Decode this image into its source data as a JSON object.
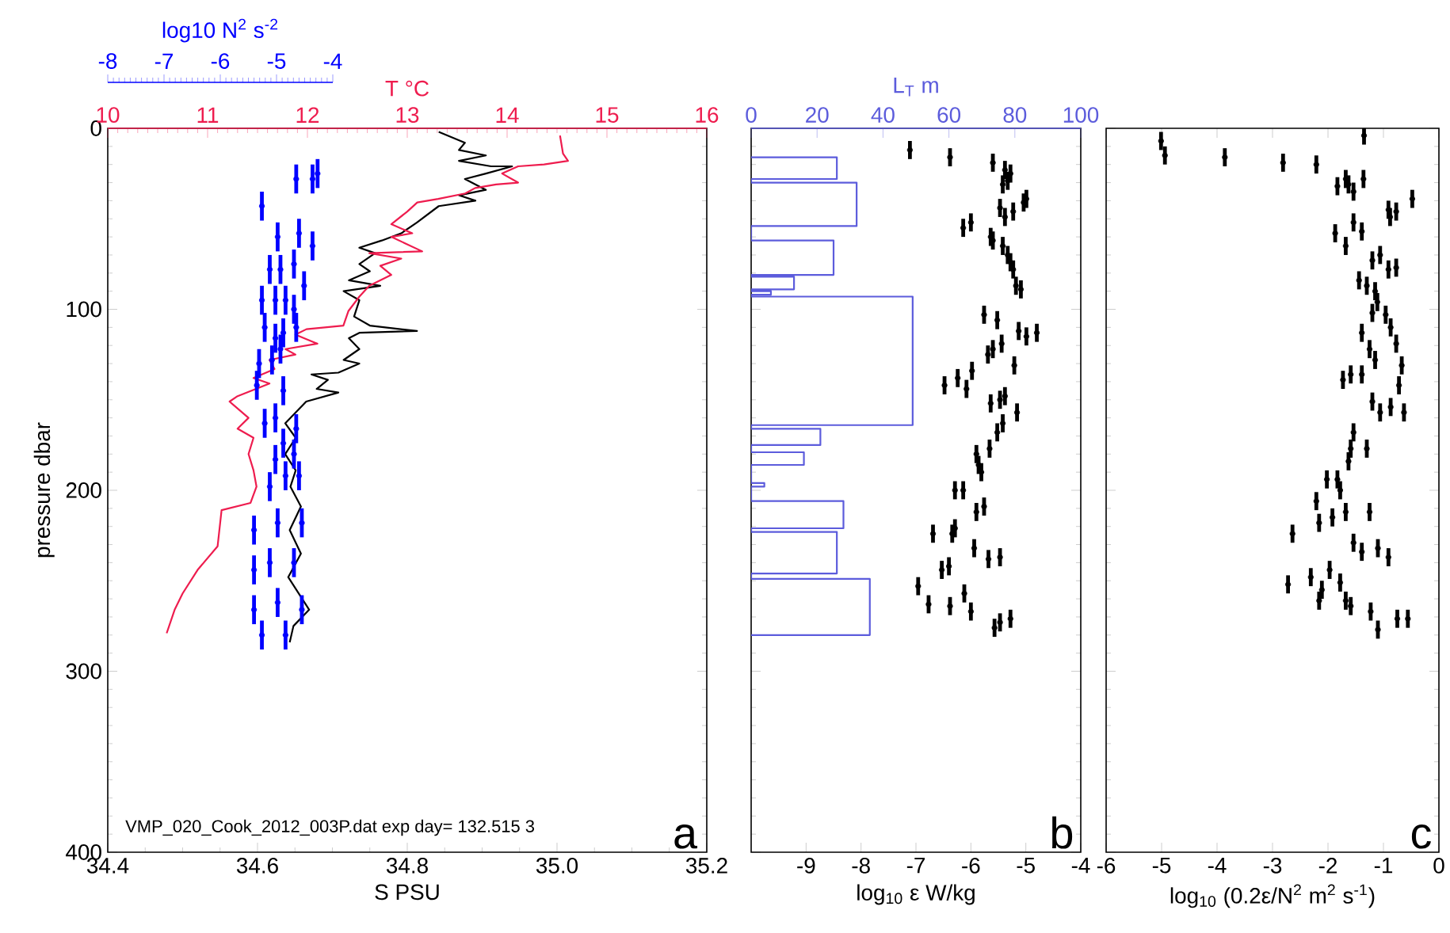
{
  "chart_data": [
    {
      "type": "line",
      "xlabel": "S PSU",
      "ylabel": "pressure dbar",
      "x2label": "T °C",
      "xlim": [
        34.4,
        35.2
      ],
      "xticks": [
        34.4,
        34.6,
        34.8,
        {
          "value": 35,
          "label": "35.0"
        },
        35.2
      ],
      "x2lim": [
        10,
        16
      ],
      "x2ticks": [
        10,
        11,
        12,
        13,
        14,
        15,
        16
      ],
      "ylim": [
        400,
        0
      ],
      "yticks": [
        0,
        100,
        200,
        300,
        400
      ],
      "annotations": [
        "VMP_020_Cook_2012_003P.dat exp day= 132.515 3",
        "a"
      ],
      "series": [
        {
          "color": "#000000",
          "x": [
            34.842,
            34.877,
            34.869,
            34.905,
            34.869,
            34.912,
            34.94,
            34.905,
            34.877,
            34.905,
            34.869,
            34.891,
            34.842,
            34.813,
            34.792,
            34.766,
            34.736,
            34.757,
            34.736,
            34.75,
            34.722,
            34.764,
            34.715,
            34.736,
            34.729,
            34.75,
            34.813,
            34.736,
            34.722,
            34.736,
            34.715,
            34.736,
            34.708,
            34.672,
            34.694,
            34.679,
            34.708,
            34.665,
            34.651,
            34.637,
            34.651,
            34.637,
            34.651,
            34.644,
            34.658,
            34.643,
            34.658,
            34.641,
            34.669,
            34.648,
            34.643
          ],
          "values": [
            2,
            8,
            12,
            15,
            18,
            21,
            21,
            25,
            28,
            34,
            37,
            40,
            43,
            52,
            58,
            62,
            66,
            69,
            75,
            79,
            84,
            87,
            90,
            95,
            104,
            109,
            112,
            113,
            116,
            122,
            128,
            130,
            135,
            136,
            139,
            144,
            146,
            151,
            157,
            163,
            171,
            180,
            189,
            198,
            209,
            222,
            235,
            248,
            266,
            275,
            284
          ]
        },
        {
          "color": "#ee1c4e",
          "axis": "x2",
          "x": [
            14.53,
            14.56,
            14.61,
            14.37,
            14.11,
            13.95,
            14.11,
            13.89,
            13.68,
            13.58,
            13.31,
            13.1,
            13.0,
            12.84,
            13.05,
            12.84,
            13.15,
            12.62,
            12.94,
            12.73,
            12.84,
            12.62,
            12.52,
            12.41,
            12.36,
            11.99,
            11.88,
            12.1,
            11.78,
            11.88,
            11.62,
            11.67,
            11.46,
            11.62,
            11.3,
            11.22,
            11.41,
            11.3,
            11.46,
            11.41,
            11.46,
            11.49,
            11.43,
            11.14,
            11.1,
            10.9,
            10.75,
            10.67,
            10.59
          ],
          "values": [
            4,
            14,
            18,
            20,
            21,
            25,
            30,
            31,
            33,
            36,
            39,
            41,
            46,
            53,
            58,
            60,
            68,
            69,
            72,
            76,
            81,
            87,
            93,
            101,
            109,
            111,
            114,
            119,
            122,
            125,
            128,
            133,
            138,
            141,
            148,
            151,
            160,
            166,
            171,
            180,
            189,
            198,
            207,
            211,
            231,
            244,
            257,
            266,
            279
          ]
        }
      ]
    },
    {
      "type": "scatter",
      "xlabel": "log10 N$^{2}$ s$^{-2}$",
      "xlim": [
        -8,
        -4
      ],
      "xticks": [
        -8,
        -7,
        -6,
        -5,
        -4
      ],
      "ylim": [
        400,
        0
      ],
      "tick_labels": "x",
      "marker": "circle",
      "series": [
        {
          "color": "#0000ff",
          "x": [
            -4.27,
            -4.65,
            -4.36,
            -5.26,
            -4.6,
            -4.98,
            -4.36,
            -4.69,
            -5.12,
            -4.93,
            -4.51,
            -5.26,
            -5.02,
            -4.84,
            -4.69,
            -4.65,
            -5.21,
            -4.88,
            -5.02,
            -4.93,
            -5.08,
            -5.31,
            -5.35,
            -4.88,
            -5.02,
            -5.21,
            -4.65,
            -4.88,
            -4.69,
            -5.02,
            -4.84,
            -4.6,
            -5.12,
            -4.98,
            -5.4,
            -4.55,
            -5.12,
            -4.69,
            -5.4,
            -4.98,
            -5.4,
            -4.55,
            -5.26,
            -4.84
          ],
          "values": [
            25,
            28,
            28,
            43,
            58,
            60,
            65,
            75,
            78,
            78,
            87,
            95,
            95,
            95,
            100,
            110,
            110,
            113,
            116,
            122,
            128,
            130,
            142,
            145,
            160,
            163,
            166,
            174,
            180,
            183,
            192,
            192,
            198,
            218,
            222,
            218,
            240,
            240,
            244,
            262,
            266,
            266,
            280,
            280
          ],
          "errors": [
            8,
            8,
            8,
            8,
            8,
            8,
            8,
            8,
            8,
            8,
            8,
            8,
            8,
            8,
            8,
            8,
            8,
            8,
            8,
            8,
            8,
            8,
            8,
            8,
            8,
            8,
            8,
            8,
            8,
            8,
            8,
            8,
            8,
            8,
            8,
            8,
            8,
            8,
            8,
            8,
            8,
            8,
            8,
            8
          ]
        }
      ]
    },
    {
      "type": "scatter",
      "xlabel": "log$_{10}$ ε W/kg",
      "x2label": "L$_{T}$ m",
      "xlim": [
        -10,
        -4
      ],
      "xticks": [
        -9,
        -8,
        -7,
        -6,
        -5,
        -4
      ],
      "x2lim": [
        0,
        100
      ],
      "x2ticks": [
        0,
        20,
        40,
        60,
        80,
        100
      ],
      "ylim": [
        400,
        0
      ],
      "yticks": [
        0,
        100,
        200,
        300,
        400
      ],
      "tick_labels": "x",
      "marker": "circle",
      "annotations": [
        "b"
      ],
      "series": [
        {
          "type": "line",
          "axis": "x2",
          "marker": "none",
          "color": "#5c5cdc",
          "x": [
            0,
            26,
            26,
            0,
            0,
            32,
            32,
            0,
            0,
            25,
            25,
            0,
            0,
            13,
            13,
            0,
            0,
            6,
            6,
            0,
            0,
            49,
            49,
            0,
            0,
            21,
            21,
            0,
            0,
            16,
            16,
            0,
            0,
            4,
            4,
            0,
            0,
            28,
            28,
            0,
            0,
            26,
            26,
            0,
            0,
            36,
            36,
            0
          ],
          "values": [
            16,
            16,
            28,
            28,
            30,
            30,
            54,
            54,
            62,
            62,
            81,
            81,
            82,
            82,
            89,
            89,
            90,
            90,
            92,
            92,
            93,
            93,
            164,
            164,
            166,
            166,
            175,
            175,
            179,
            179,
            186,
            186,
            196,
            196,
            198,
            198,
            206,
            206,
            221,
            221,
            223,
            223,
            246,
            246,
            249,
            249,
            280,
            280
          ]
        },
        {
          "color": "#000000",
          "x": [
            -7.11,
            -6.38,
            -5.6,
            -5.38,
            -5.28,
            -5.33,
            -5.42,
            -4.99,
            -5.04,
            -5.47,
            -5.23,
            -5.38,
            -6.14,
            -6.0,
            -5.64,
            -5.6,
            -5.42,
            -5.33,
            -5.28,
            -5.23,
            -5.18,
            -5.09,
            -5.76,
            -5.52,
            -5.13,
            -4.99,
            -4.8,
            -5.69,
            -5.6,
            -5.44,
            -5.21,
            -6.48,
            -6.24,
            -6.08,
            -5.98,
            -5.64,
            -5.47,
            -5.38,
            -5.16,
            -5.42,
            -5.52,
            -5.66,
            -5.9,
            -5.86,
            -5.81,
            -6.29,
            -6.14,
            -5.9,
            -5.76,
            -6.29,
            -6.34,
            -6.69,
            -5.94,
            -5.68,
            -5.47,
            -6.53,
            -6.4,
            -6.96,
            -6.77,
            -6.38,
            -6.12,
            -6.0,
            -5.57,
            -5.47,
            -5.28
          ],
          "values": [
            12,
            16,
            19,
            23,
            25,
            29,
            31,
            39,
            41,
            44,
            46,
            49,
            55,
            52,
            60,
            62,
            65,
            70,
            74,
            78,
            87,
            89,
            103,
            106,
            112,
            115,
            113,
            125,
            122,
            119,
            131,
            142,
            138,
            144,
            134,
            152,
            150,
            148,
            157,
            163,
            168,
            177,
            180,
            186,
            190,
            200,
            200,
            212,
            209,
            221,
            224,
            224,
            232,
            238,
            237,
            244,
            242,
            253,
            263,
            264,
            257,
            267,
            276,
            273,
            271
          ],
          "errors": [
            5,
            5,
            5,
            5,
            5,
            5,
            5,
            5,
            5,
            5,
            5,
            5,
            5,
            5,
            5,
            5,
            5,
            5,
            5,
            5,
            5,
            5,
            5,
            5,
            5,
            5,
            5,
            5,
            5,
            5,
            5,
            5,
            5,
            5,
            5,
            5,
            5,
            5,
            5,
            5,
            5,
            5,
            5,
            5,
            5,
            5,
            5,
            5,
            5,
            5,
            5,
            5,
            5,
            5,
            5,
            5,
            5,
            5,
            5,
            5,
            5,
            5,
            5,
            5,
            5
          ]
        }
      ]
    },
    {
      "type": "scatter",
      "xlabel": "log$_{10}$ (0.2ε/N$^{2}$ m$^{2}$ s$^{-1}$)",
      "xlim": [
        -6,
        0
      ],
      "xticks": [
        -6,
        -5,
        -4,
        -3,
        -2,
        -1,
        0
      ],
      "ylim": [
        400,
        0
      ],
      "yticks": [
        0,
        100,
        200,
        300,
        400
      ],
      "tick_labels": "x",
      "marker": "circle",
      "annotations": [
        "c"
      ],
      "series": [
        {
          "color": "#000000",
          "x": [
            -5.01,
            -4.94,
            -3.86,
            -2.81,
            -2.21,
            -1.35,
            -1.83,
            -1.68,
            -1.63,
            -1.54,
            -1.36,
            -0.48,
            -0.91,
            -0.77,
            -0.88,
            -1.87,
            -1.68,
            -1.54,
            -1.39,
            -1.2,
            -1.06,
            -0.91,
            -0.77,
            -1.44,
            -1.3,
            -1.15,
            -1.2,
            -1.11,
            -0.96,
            -0.87,
            -0.77,
            -1.39,
            -1.25,
            -1.15,
            -0.67,
            -0.72,
            -1.73,
            -1.59,
            -1.39,
            -1.2,
            -1.06,
            -0.87,
            -0.63,
            -1.54,
            -1.59,
            -1.63,
            -1.3,
            -2.02,
            -1.83,
            -1.78,
            -2.21,
            -2.16,
            -1.92,
            -1.68,
            -1.25,
            -1.54,
            -1.39,
            -1.1,
            -0.91,
            -2.64,
            -2.72,
            -2.31,
            -2.11,
            -1.97,
            -2.16,
            -1.78,
            -1.68,
            -1.59,
            -1.23,
            -1.1,
            -0.75,
            -0.56
          ],
          "values": [
            7,
            15,
            16,
            19,
            20,
            4,
            32,
            28,
            31,
            35,
            28,
            39,
            45,
            46,
            49,
            58,
            65,
            52,
            57,
            73,
            70,
            78,
            77,
            84,
            87,
            90,
            102,
            96,
            103,
            110,
            119,
            113,
            122,
            128,
            131,
            142,
            139,
            136,
            136,
            151,
            157,
            154,
            157,
            168,
            177,
            184,
            177,
            194,
            194,
            200,
            206,
            218,
            215,
            212,
            212,
            229,
            234,
            232,
            237,
            224,
            252,
            248,
            255,
            244,
            261,
            251,
            261,
            264,
            267,
            277,
            271,
            271
          ],
          "errors": [
            5,
            5,
            5,
            5,
            5,
            5,
            5,
            5,
            5,
            5,
            5,
            5,
            5,
            5,
            5,
            5,
            5,
            5,
            5,
            5,
            5,
            5,
            5,
            5,
            5,
            5,
            5,
            5,
            5,
            5,
            5,
            5,
            5,
            5,
            5,
            5,
            5,
            5,
            5,
            5,
            5,
            5,
            5,
            5,
            5,
            5,
            5,
            5,
            5,
            5,
            5,
            5,
            5,
            5,
            5,
            5,
            5,
            5,
            5,
            5,
            5,
            5,
            5,
            5,
            5,
            5,
            5,
            5,
            5,
            5,
            5,
            5
          ]
        }
      ]
    }
  ]
}
